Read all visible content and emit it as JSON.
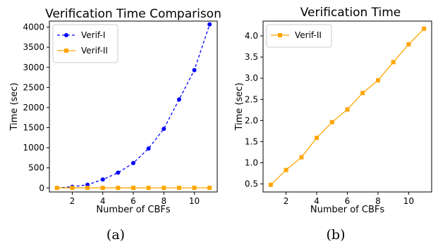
{
  "chart_data": [
    {
      "type": "line",
      "title": "Verification Time Comparison",
      "xlabel": "Number of CBFs",
      "ylabel": "Time (sec)",
      "caption": "(a)",
      "x": [
        1,
        2,
        3,
        4,
        5,
        6,
        7,
        8,
        9,
        10,
        11
      ],
      "xlim": [
        0.5,
        11.5
      ],
      "ylim": [
        -100,
        4150
      ],
      "xticks": [
        2,
        4,
        6,
        8,
        10
      ],
      "yticks": [
        0,
        500,
        1000,
        1500,
        2000,
        2500,
        3000,
        3500,
        4000
      ],
      "legend_position": "top-left",
      "series": [
        {
          "name": "Verif-I",
          "color": "#0000ff",
          "line_style": "dashed",
          "marker": "circle",
          "values": [
            0.5,
            30,
            80,
            210,
            380,
            620,
            980,
            1470,
            2200,
            2930,
            4070
          ]
        },
        {
          "name": "Verif-II",
          "color": "#ffa500",
          "line_style": "solid",
          "marker": "square",
          "values": [
            0.48,
            0.83,
            1.13,
            1.59,
            1.96,
            2.26,
            2.65,
            2.95,
            3.38,
            3.8,
            4.17
          ]
        }
      ]
    },
    {
      "type": "line",
      "title": "Verification Time",
      "xlabel": "Number of CBFs",
      "ylabel": "Time (sec)",
      "caption": "(b)",
      "x": [
        1,
        2,
        3,
        4,
        5,
        6,
        7,
        8,
        9,
        10,
        11
      ],
      "xlim": [
        0.5,
        11.5
      ],
      "ylim": [
        0.31,
        4.35
      ],
      "xticks": [
        2,
        4,
        6,
        8,
        10
      ],
      "yticks": [
        0.5,
        1.0,
        1.5,
        2.0,
        2.5,
        3.0,
        3.5,
        4.0
      ],
      "ytick_labels": [
        "0.5",
        "1.0",
        "1.5",
        "2.0",
        "2.5",
        "3.0",
        "3.5",
        "4.0"
      ],
      "legend_position": "top-left",
      "series": [
        {
          "name": "Verif-II",
          "color": "#ffa500",
          "line_style": "solid",
          "marker": "square",
          "values": [
            0.48,
            0.83,
            1.13,
            1.59,
            1.96,
            2.26,
            2.65,
            2.95,
            3.38,
            3.8,
            4.17
          ]
        }
      ]
    }
  ]
}
